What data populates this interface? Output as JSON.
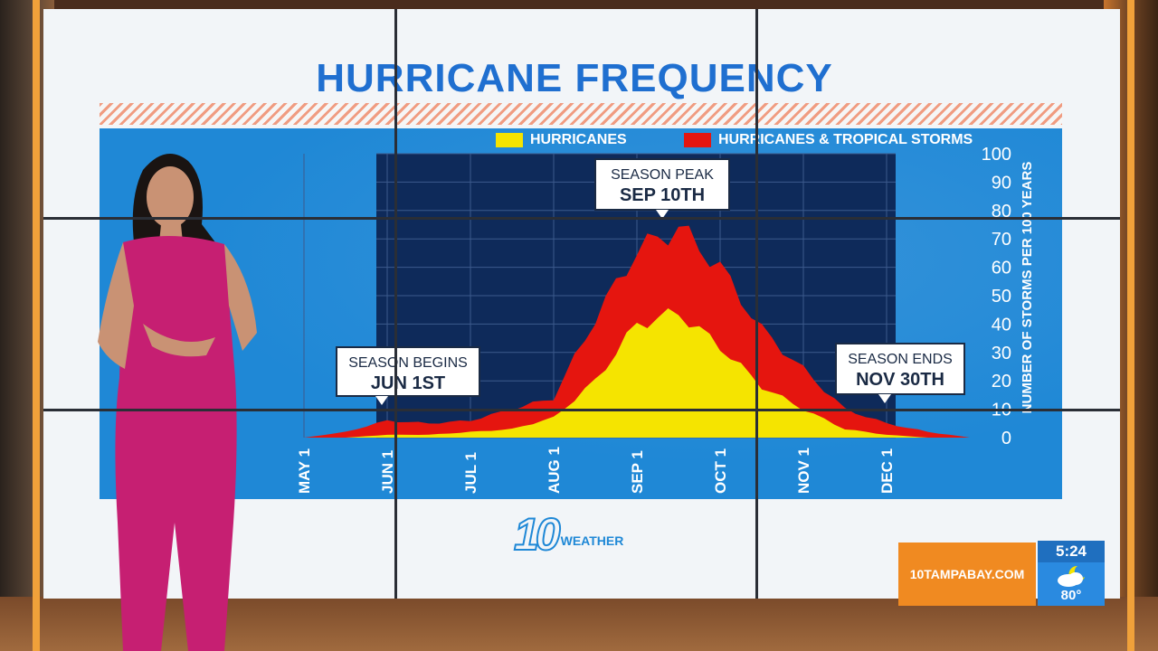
{
  "title": "HURRICANE FREQUENCY",
  "legend": [
    {
      "label": "HURRICANES",
      "color": "#f5e400"
    },
    {
      "label": "HURRICANES & TROPICAL STORMS",
      "color": "#e5150f"
    }
  ],
  "callouts": [
    {
      "label": "SEASON BEGINS",
      "value": "JUN 1ST"
    },
    {
      "label": "SEASON PEAK",
      "value": "SEP 10TH"
    },
    {
      "label": "SEASON ENDS",
      "value": "NOV 30TH"
    }
  ],
  "logo": {
    "number": "10",
    "word": "WEATHER"
  },
  "ticker": {
    "url": "10TAMPABAY.COM",
    "time": "5:24",
    "temp": "80°",
    "weather_icon": "partly-cloudy-night-icon"
  },
  "chart_data": {
    "type": "area",
    "title": "HURRICANE FREQUENCY",
    "xlabel": "",
    "ylabel": "NUMBER OF STORMS PER 100 YEARS",
    "ylim": [
      0,
      100
    ],
    "yticks": [
      "0",
      "10",
      "20",
      "30",
      "40",
      "50",
      "60",
      "70",
      "80",
      "90",
      "100"
    ],
    "xticks": [
      "MAY 1",
      "JUN 1",
      "JUL 1",
      "AUG 1",
      "SEP 1",
      "OCT 1",
      "NOV 1",
      "DEC 1"
    ],
    "x": [
      "MAY 1",
      "MAY 15",
      "JUN 1",
      "JUN 15",
      "JUL 1",
      "JUL 15",
      "AUG 1",
      "AUG 15",
      "SEP 1",
      "SEP 10",
      "SEP 20",
      "OCT 1",
      "OCT 15",
      "NOV 1",
      "NOV 15",
      "DEC 1",
      "DEC 15"
    ],
    "series": [
      {
        "name": "HURRICANES & TROPICAL STORMS",
        "color": "#e5150f",
        "values": [
          0,
          2,
          6,
          5,
          6,
          10,
          14,
          42,
          66,
          74,
          60,
          38,
          24,
          10,
          5,
          2,
          0
        ]
      },
      {
        "name": "HURRICANES",
        "color": "#f5e400",
        "values": [
          0,
          0,
          1,
          1,
          2,
          3,
          7,
          20,
          40,
          44,
          32,
          18,
          10,
          3,
          1,
          0,
          0
        ]
      }
    ],
    "grid": true,
    "legend_position": "top"
  }
}
